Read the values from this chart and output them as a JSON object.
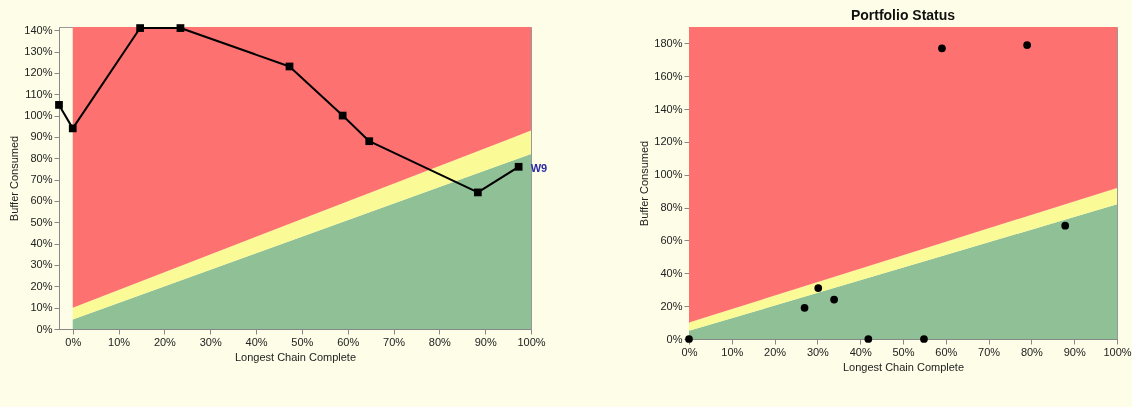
{
  "chart_data": [
    {
      "type": "line",
      "xlabel": "Longest Chain Complete",
      "ylabel": "Buffer Consumed",
      "xlim": [
        -3,
        100
      ],
      "ylim": [
        0,
        141.5
      ],
      "xticks": [
        {
          "value": 0,
          "label": "0%"
        },
        {
          "value": 10,
          "label": "10%"
        },
        {
          "value": 20,
          "label": "20%"
        },
        {
          "value": 30,
          "label": "30%"
        },
        {
          "value": 40,
          "label": "40%"
        },
        {
          "value": 50,
          "label": "50%"
        },
        {
          "value": 60,
          "label": "60%"
        },
        {
          "value": 70,
          "label": "70%"
        },
        {
          "value": 80,
          "label": "80%"
        },
        {
          "value": 90,
          "label": "90%"
        },
        {
          "value": 100,
          "label": "100%"
        }
      ],
      "yticks": [
        {
          "value": 0,
          "label": "0%"
        },
        {
          "value": 10,
          "label": "10%"
        },
        {
          "value": 20,
          "label": "20%"
        },
        {
          "value": 30,
          "label": "30%"
        },
        {
          "value": 40,
          "label": "40%"
        },
        {
          "value": 50,
          "label": "50%"
        },
        {
          "value": 60,
          "label": "60%"
        },
        {
          "value": 70,
          "label": "70%"
        },
        {
          "value": 80,
          "label": "80%"
        },
        {
          "value": 90,
          "label": "90%"
        },
        {
          "value": 100,
          "label": "100%"
        },
        {
          "value": 110,
          "label": "110%"
        },
        {
          "value": 120,
          "label": "120%"
        },
        {
          "value": 130,
          "label": "130%"
        },
        {
          "value": 140,
          "label": "140%"
        }
      ],
      "stacked": true,
      "series": [
        {
          "type": "area",
          "marker": "none",
          "color": "#8fc096",
          "x": [
            0,
            100
          ],
          "values": [
            4.5,
            82
          ]
        },
        {
          "type": "area",
          "marker": "none",
          "color": "#fafa96",
          "x": [
            0,
            100
          ],
          "values": [
            5.5,
            11
          ]
        },
        {
          "type": "area",
          "marker": "none",
          "color": "#fd7271",
          "x": [
            0,
            100
          ],
          "values": [
            131.5,
            48.5
          ]
        },
        {
          "color": "#000000",
          "x": [
            -3,
            0,
            14.7,
            23.5,
            47.3,
            58.9,
            64.7,
            88.4,
            97.3
          ],
          "values": [
            105,
            94,
            141,
            141,
            123,
            100,
            88,
            64,
            76
          ]
        }
      ],
      "marker": "square",
      "line_style": "solid",
      "grid": false,
      "annotations": [
        {
          "text": "W9",
          "x": 97.3,
          "y": 76
        }
      ]
    },
    {
      "type": "scatter",
      "title": "Portfolio Status",
      "xlabel": "Longest Chain Complete",
      "ylabel": "Buffer Consumed",
      "xlim": [
        0,
        100
      ],
      "ylim": [
        0,
        190
      ],
      "xticks": [
        {
          "value": 0,
          "label": "0%"
        },
        {
          "value": 10,
          "label": "10%"
        },
        {
          "value": 20,
          "label": "20%"
        },
        {
          "value": 30,
          "label": "30%"
        },
        {
          "value": 40,
          "label": "40%"
        },
        {
          "value": 50,
          "label": "50%"
        },
        {
          "value": 60,
          "label": "60%"
        },
        {
          "value": 70,
          "label": "70%"
        },
        {
          "value": 80,
          "label": "80%"
        },
        {
          "value": 90,
          "label": "90%"
        },
        {
          "value": 100,
          "label": "100%"
        }
      ],
      "yticks": [
        {
          "value": 0,
          "label": "0%"
        },
        {
          "value": 20,
          "label": "20%"
        },
        {
          "value": 40,
          "label": "40%"
        },
        {
          "value": 60,
          "label": "60%"
        },
        {
          "value": 80,
          "label": "80%"
        },
        {
          "value": 100,
          "label": "100%"
        },
        {
          "value": 120,
          "label": "120%"
        },
        {
          "value": 140,
          "label": "140%"
        },
        {
          "value": 160,
          "label": "160%"
        },
        {
          "value": 180,
          "label": "180%"
        }
      ],
      "stacked": true,
      "series": [
        {
          "type": "area",
          "marker": "none",
          "color": "#8fc096",
          "x": [
            0,
            100
          ],
          "values": [
            5,
            82
          ]
        },
        {
          "type": "area",
          "marker": "none",
          "color": "#fafa96",
          "x": [
            0,
            100
          ],
          "values": [
            5,
            10
          ]
        },
        {
          "type": "area",
          "marker": "none",
          "color": "#fd7271",
          "x": [
            0,
            100
          ],
          "values": [
            180,
            98
          ]
        },
        {
          "color": "#000000",
          "x": [
            0,
            27,
            30.2,
            33.9,
            41.9,
            54.9,
            59.1,
            79,
            87.9
          ],
          "values": [
            0,
            19,
            31,
            24,
            0,
            0,
            177,
            179,
            69
          ]
        }
      ],
      "marker": "circle",
      "grid": false
    }
  ]
}
